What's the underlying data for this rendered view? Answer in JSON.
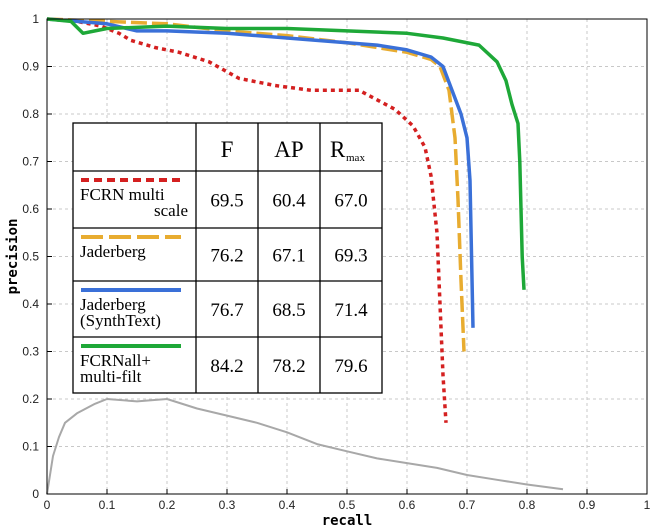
{
  "chart_data": {
    "type": "line",
    "xlabel": "recall",
    "ylabel": "precision",
    "xlim": [
      0,
      1
    ],
    "ylim": [
      0,
      1
    ],
    "xticks": [
      "0",
      "0.1",
      "0.2",
      "0.3",
      "0.4",
      "0.5",
      "0.6",
      "0.7",
      "0.8",
      "0.9",
      "1"
    ],
    "yticks": [
      "0",
      "0.1",
      "0.2",
      "0.3",
      "0.4",
      "0.5",
      "0.6",
      "0.7",
      "0.8",
      "0.9",
      "1"
    ],
    "grid": true,
    "legend_placement": "center-left",
    "table_headers": [
      "F",
      "AP",
      "R",
      "max"
    ],
    "series": [
      {
        "name": "FCRN multi scale",
        "legend_lines": [
          "FCRN multi",
          "scale"
        ],
        "color": "#d42020",
        "dash": "dotted",
        "metrics": [
          "69.5",
          "60.4",
          "67.0"
        ],
        "x": [
          0.0,
          0.05,
          0.09,
          0.12,
          0.14,
          0.18,
          0.22,
          0.27,
          0.32,
          0.38,
          0.44,
          0.52,
          0.58,
          0.61,
          0.63,
          0.64,
          0.65,
          0.655,
          0.66,
          0.665
        ],
        "y": [
          1.0,
          0.995,
          0.985,
          0.97,
          0.955,
          0.94,
          0.93,
          0.91,
          0.875,
          0.86,
          0.85,
          0.85,
          0.81,
          0.775,
          0.73,
          0.67,
          0.55,
          0.4,
          0.25,
          0.15
        ]
      },
      {
        "name": "Jaderberg",
        "legend_lines": [
          "Jaderberg"
        ],
        "color": "#e8ac30",
        "dash": "dashed",
        "metrics": [
          "76.2",
          "67.1",
          "69.3"
        ],
        "x": [
          0.0,
          0.1,
          0.2,
          0.3,
          0.4,
          0.5,
          0.55,
          0.6,
          0.64,
          0.655,
          0.67,
          0.68,
          0.685,
          0.69,
          0.695
        ],
        "y": [
          1.0,
          0.995,
          0.99,
          0.975,
          0.965,
          0.95,
          0.94,
          0.93,
          0.915,
          0.9,
          0.85,
          0.75,
          0.62,
          0.45,
          0.3
        ]
      },
      {
        "name": "Jaderberg (SynthText)",
        "legend_lines": [
          "Jaderberg",
          "(SynthText)"
        ],
        "color": "#3a70d8",
        "dash": "solid",
        "metrics": [
          "76.7",
          "68.5",
          "71.4"
        ],
        "x": [
          0.0,
          0.1,
          0.15,
          0.2,
          0.3,
          0.4,
          0.5,
          0.55,
          0.6,
          0.64,
          0.66,
          0.675,
          0.69,
          0.7,
          0.705,
          0.71
        ],
        "y": [
          1.0,
          0.99,
          0.975,
          0.975,
          0.97,
          0.96,
          0.95,
          0.945,
          0.935,
          0.92,
          0.9,
          0.85,
          0.8,
          0.75,
          0.66,
          0.35
        ]
      },
      {
        "name": "FCRNall+ multi-filt",
        "legend_lines": [
          "FCRNall+",
          "multi-filt"
        ],
        "color": "#1ea838",
        "dash": "solid",
        "metrics": [
          "84.2",
          "78.2",
          "79.6"
        ],
        "x": [
          0.0,
          0.04,
          0.06,
          0.08,
          0.1,
          0.2,
          0.3,
          0.4,
          0.5,
          0.6,
          0.66,
          0.72,
          0.75,
          0.765,
          0.775,
          0.785,
          0.788,
          0.79,
          0.792,
          0.795
        ],
        "y": [
          1.0,
          0.995,
          0.97,
          0.975,
          0.98,
          0.985,
          0.98,
          0.98,
          0.975,
          0.97,
          0.96,
          0.945,
          0.91,
          0.87,
          0.82,
          0.78,
          0.7,
          0.6,
          0.5,
          0.43
        ]
      },
      {
        "name": "",
        "legend_lines": [],
        "color": "#a8a8a8",
        "dash": "solid",
        "metrics": [],
        "x": [
          0.0,
          0.005,
          0.01,
          0.02,
          0.03,
          0.05,
          0.08,
          0.1,
          0.15,
          0.2,
          0.25,
          0.3,
          0.35,
          0.4,
          0.45,
          0.5,
          0.55,
          0.6,
          0.65,
          0.7,
          0.75,
          0.8,
          0.86
        ],
        "y": [
          0.0,
          0.04,
          0.08,
          0.12,
          0.15,
          0.17,
          0.19,
          0.2,
          0.195,
          0.2,
          0.18,
          0.165,
          0.15,
          0.13,
          0.105,
          0.09,
          0.075,
          0.065,
          0.055,
          0.04,
          0.03,
          0.02,
          0.01
        ]
      }
    ]
  }
}
